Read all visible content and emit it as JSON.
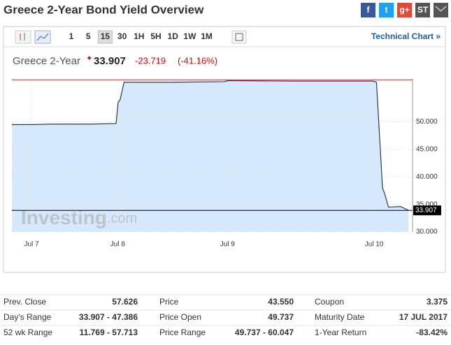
{
  "header": {
    "title": "Greece 2-Year Bond Yield Overview",
    "social": [
      "f",
      "t",
      "g+",
      "ST"
    ]
  },
  "toolbar": {
    "timeframes": [
      "1",
      "5",
      "15",
      "30",
      "1H",
      "5H",
      "1D",
      "1W",
      "1M"
    ],
    "active": "15",
    "technical": "Technical Chart »"
  },
  "quote": {
    "name": "Greece 2-Year",
    "price": "33.907",
    "change": "-23.719",
    "percent": "(-41.16%)"
  },
  "chart_data": {
    "type": "area",
    "color": "#2b3a55",
    "fill": "#d6e8fb",
    "x": [
      0,
      5,
      10,
      15,
      20,
      26,
      26.5,
      27,
      28,
      40,
      53,
      54,
      70,
      90,
      91,
      92.5,
      93,
      94,
      97,
      99
    ],
    "values": [
      49.5,
      49.5,
      49.6,
      49.6,
      49.6,
      49.7,
      53.5,
      54,
      57.2,
      57.2,
      57.3,
      57.5,
      57.4,
      57.4,
      57.2,
      38,
      37,
      34.5,
      34.6,
      33.907
    ],
    "xlim": [
      0,
      100
    ],
    "ylim": [
      30,
      57.8
    ],
    "xticks": [
      {
        "value": 4.9,
        "label": "Jul 7"
      },
      {
        "value": 26.4,
        "label": "Jul 8"
      },
      {
        "value": 53.8,
        "label": "Jul 9"
      },
      {
        "value": 90.4,
        "label": "Jul 10"
      }
    ],
    "yticks": [
      {
        "value": 30,
        "label": "30.000"
      },
      {
        "value": 35,
        "label": "35.000"
      },
      {
        "value": 40,
        "label": "40.000"
      },
      {
        "value": 45,
        "label": "45.000"
      },
      {
        "value": 50,
        "label": "50.000"
      }
    ],
    "reference_line": 57.626,
    "last_value": {
      "value": 33.907,
      "label": "33.907"
    },
    "grid": true,
    "watermark": [
      "Investing",
      ".com"
    ]
  },
  "table": {
    "rows": [
      [
        "Prev. Close",
        "57.626",
        "Price",
        "43.550",
        "Coupon",
        "3.375"
      ],
      [
        "Day's Range",
        "33.907 - 47.386",
        "Price Open",
        "49.737",
        "Maturity Date",
        "17 JUL 2017"
      ],
      [
        "52 wk Range",
        "11.769 - 57.713",
        "Price Range",
        "49.737 - 60.047",
        "1-Year Return",
        "-83.42%"
      ]
    ]
  }
}
